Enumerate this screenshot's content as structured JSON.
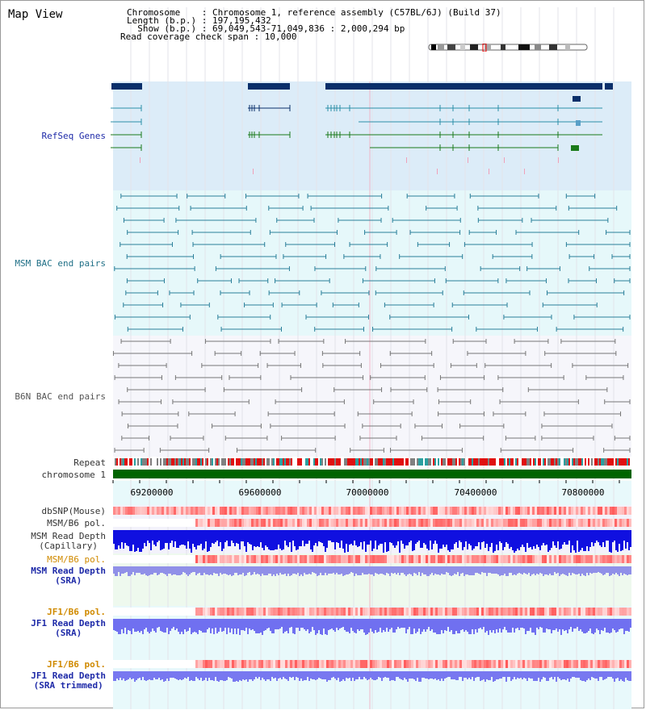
{
  "view_title": "Map View",
  "info": {
    "chromosome": "Chromosome    : Chromosome 1, reference assembly (C57BL/6J) (Build 37)",
    "length": "Length (b.p.) : 197,195,432",
    "show": "  Show (b.p.) : 69,049,543-71,049,836 : 2,000,294 bp",
    "read_coverage": "Read coverage check span : 10,000"
  },
  "tracks": {
    "refseq_genes": "RefSeq Genes",
    "msm_bac": "MSM BAC end pairs",
    "b6n_bac": "B6N BAC end pairs",
    "repeat": "Repeat",
    "chromosome": "chromosome 1",
    "dbsnp": "dbSNP(Mouse)",
    "msm_b6_pol_1": "MSM/B6 pol.",
    "msm_read_depth_cap_1": "MSM Read Depth",
    "msm_read_depth_cap_2": "(Capillary)",
    "msm_b6_pol_2": "MSM/B6 pol.",
    "msm_read_depth_sra_1": "MSM Read Depth",
    "msm_read_depth_sra_2": "(SRA)",
    "jf1_b6_pol_1": "JF1/B6 pol.",
    "jf1_read_depth_sra_1": "JF1 Read Depth",
    "jf1_read_depth_sra_2": "(SRA)",
    "jf1_b6_pol_2": "JF1/B6 pol.",
    "jf1_read_depth_trim_1": "JF1 Read Depth",
    "jf1_read_depth_trim_2": "(SRA trimmed)"
  },
  "axis": {
    "ticks": [
      "69200000",
      "69600000",
      "70000000",
      "70400000",
      "70800000"
    ]
  },
  "colors": {
    "gene_dark": "#0a2f6a",
    "gene_teal": "#2c8fa8",
    "gene_green": "#1a7a1a",
    "msm_pair": "#2a7f9a",
    "b6n_pair": "#777777",
    "chromosome_bar": "#006400",
    "read_depth_blue": "#1010e0",
    "read_depth_light": "#7070f0",
    "label_blue": "#1e2aa8",
    "label_orange": "#d08a00",
    "label_dark": "#333333"
  }
}
